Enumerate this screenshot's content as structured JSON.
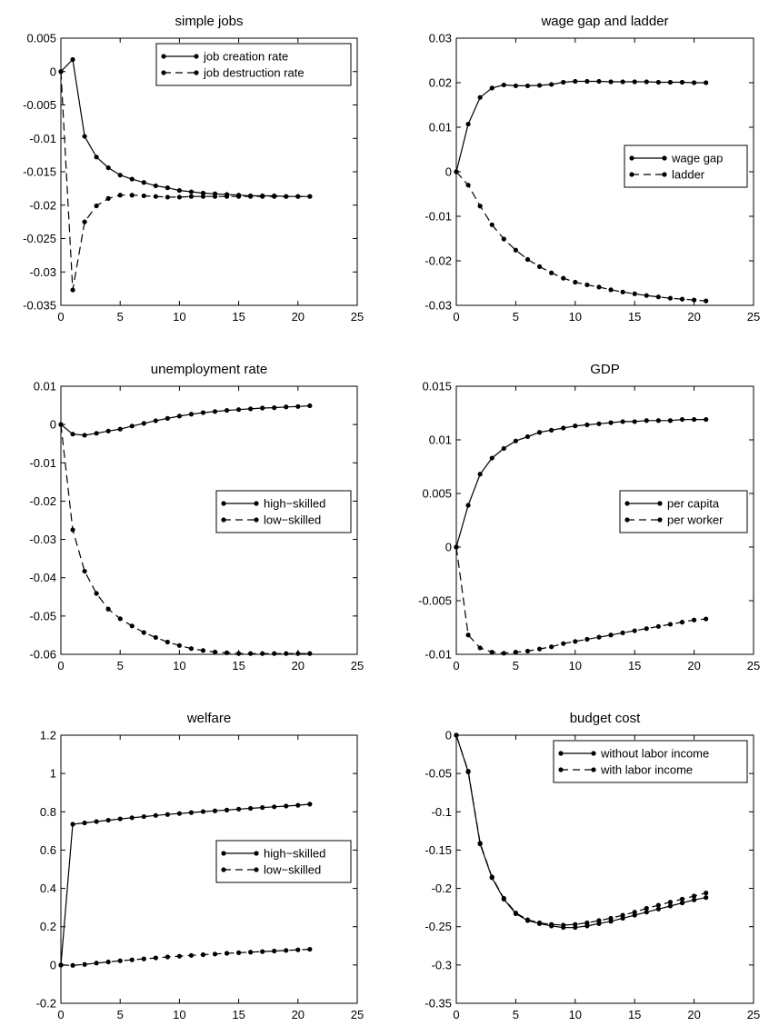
{
  "chart_data": [
    {
      "type": "line",
      "title": "simple jobs",
      "xlim": [
        0,
        25
      ],
      "ylim": [
        -0.035,
        0.005
      ],
      "xticks": [
        0,
        5,
        10,
        15,
        20,
        25
      ],
      "xtick_labels": [
        "0",
        "5",
        "10",
        "15",
        "20",
        "25"
      ],
      "yticks": [
        0.005,
        0,
        -0.005,
        -0.01,
        -0.015,
        -0.02,
        -0.025,
        -0.03,
        -0.035
      ],
      "ytick_labels": [
        "0.005",
        "0",
        "-0.005",
        "-0.01",
        "-0.015",
        "-0.02",
        "-0.025",
        "-0.03",
        "-0.035"
      ],
      "legend_position": "top-right",
      "grid": false,
      "x": [
        0,
        1,
        2,
        3,
        4,
        5,
        6,
        7,
        8,
        9,
        10,
        11,
        12,
        13,
        14,
        15,
        16,
        17,
        18,
        19,
        20,
        21
      ],
      "series": [
        {
          "name": "job creation rate",
          "style": "solid",
          "values": [
            0,
            0.0018,
            -0.0097,
            -0.0128,
            -0.0144,
            -0.0155,
            -0.0161,
            -0.0166,
            -0.0171,
            -0.0174,
            -0.0178,
            -0.018,
            -0.0182,
            -0.0183,
            -0.0184,
            -0.0185,
            -0.0186,
            -0.0186,
            -0.0186,
            -0.0187,
            -0.0187,
            -0.0187
          ]
        },
        {
          "name": "job destruction rate",
          "style": "dashed",
          "values": [
            0,
            -0.0327,
            -0.0225,
            -0.0201,
            -0.019,
            -0.0185,
            -0.0185,
            -0.0186,
            -0.0187,
            -0.0188,
            -0.0188,
            -0.0187,
            -0.0187,
            -0.0187,
            -0.0187,
            -0.0187,
            -0.0187,
            -0.0187,
            -0.0187,
            -0.0187,
            -0.0187,
            -0.0187
          ]
        }
      ]
    },
    {
      "type": "line",
      "title": "wage gap and ladder",
      "xlim": [
        0,
        25
      ],
      "ylim": [
        -0.03,
        0.03
      ],
      "xticks": [
        0,
        5,
        10,
        15,
        20,
        25
      ],
      "xtick_labels": [
        "0",
        "5",
        "10",
        "15",
        "20",
        "25"
      ],
      "yticks": [
        0.03,
        0.02,
        0.01,
        0,
        -0.01,
        -0.02,
        -0.03
      ],
      "ytick_labels": [
        "0.03",
        "0.02",
        "0.01",
        "0",
        "-0.01",
        "-0.02",
        "-0.03"
      ],
      "legend_position": "middle-right",
      "grid": false,
      "x": [
        0,
        1,
        2,
        3,
        4,
        5,
        6,
        7,
        8,
        9,
        10,
        11,
        12,
        13,
        14,
        15,
        16,
        17,
        18,
        19,
        20,
        21
      ],
      "series": [
        {
          "name": "wage gap",
          "style": "solid",
          "values": [
            0,
            0.0107,
            0.0167,
            0.0188,
            0.0195,
            0.0193,
            0.0193,
            0.0194,
            0.0196,
            0.0201,
            0.0203,
            0.0203,
            0.0203,
            0.0202,
            0.0202,
            0.0202,
            0.0202,
            0.0201,
            0.0201,
            0.0201,
            0.02,
            0.02
          ]
        },
        {
          "name": "ladder",
          "style": "dashed",
          "values": [
            0,
            -0.003,
            -0.0077,
            -0.0119,
            -0.0151,
            -0.0176,
            -0.0197,
            -0.0213,
            -0.0227,
            -0.0239,
            -0.0248,
            -0.0254,
            -0.0259,
            -0.0265,
            -0.027,
            -0.0274,
            -0.0278,
            -0.0281,
            -0.0284,
            -0.0286,
            -0.0288,
            -0.029
          ]
        }
      ]
    },
    {
      "type": "line",
      "title": "unemployment rate",
      "xlim": [
        0,
        25
      ],
      "ylim": [
        -0.06,
        0.01
      ],
      "xticks": [
        0,
        5,
        10,
        15,
        20,
        25
      ],
      "xtick_labels": [
        "0",
        "5",
        "10",
        "15",
        "20",
        "25"
      ],
      "yticks": [
        0.01,
        0,
        -0.01,
        -0.02,
        -0.03,
        -0.04,
        -0.05,
        -0.06
      ],
      "ytick_labels": [
        "0.01",
        "0",
        "-0.01",
        "-0.02",
        "-0.03",
        "-0.04",
        "-0.05",
        "-0.06"
      ],
      "legend_position": "middle-right",
      "grid": false,
      "x": [
        0,
        1,
        2,
        3,
        4,
        5,
        6,
        7,
        8,
        9,
        10,
        11,
        12,
        13,
        14,
        15,
        16,
        17,
        18,
        19,
        20,
        21
      ],
      "series": [
        {
          "name": "high−skilled",
          "style": "solid",
          "values": [
            0,
            -0.0025,
            -0.0028,
            -0.0023,
            -0.0017,
            -0.0012,
            -0.0004,
            0.0003,
            0.001,
            0.0016,
            0.0022,
            0.0027,
            0.0031,
            0.0034,
            0.0037,
            0.0039,
            0.0041,
            0.0043,
            0.0044,
            0.0046,
            0.0047,
            0.0049
          ]
        },
        {
          "name": "low−skilled",
          "style": "dashed",
          "values": [
            0,
            -0.0275,
            -0.0383,
            -0.0441,
            -0.0482,
            -0.0507,
            -0.0526,
            -0.0543,
            -0.0556,
            -0.0568,
            -0.0577,
            -0.0585,
            -0.059,
            -0.0594,
            -0.0596,
            -0.0598,
            -0.0598,
            -0.0598,
            -0.0598,
            -0.0598,
            -0.0598,
            -0.0598
          ]
        }
      ]
    },
    {
      "type": "line",
      "title": "GDP",
      "xlim": [
        0,
        25
      ],
      "ylim": [
        -0.01,
        0.015
      ],
      "xticks": [
        0,
        5,
        10,
        15,
        20,
        25
      ],
      "xtick_labels": [
        "0",
        "5",
        "10",
        "15",
        "20",
        "25"
      ],
      "yticks": [
        0.015,
        0.01,
        0.005,
        0,
        -0.005,
        -0.01
      ],
      "ytick_labels": [
        "0.015",
        "0.01",
        "0.005",
        "0",
        "-0.005",
        "-0.01"
      ],
      "legend_position": "middle-right",
      "grid": false,
      "x": [
        0,
        1,
        2,
        3,
        4,
        5,
        6,
        7,
        8,
        9,
        10,
        11,
        12,
        13,
        14,
        15,
        16,
        17,
        18,
        19,
        20,
        21
      ],
      "series": [
        {
          "name": "per capita",
          "style": "solid",
          "values": [
            0,
            0.0039,
            0.0068,
            0.0083,
            0.0092,
            0.0099,
            0.0103,
            0.0107,
            0.0109,
            0.0111,
            0.0113,
            0.0114,
            0.0115,
            0.0116,
            0.0117,
            0.0117,
            0.0118,
            0.0118,
            0.0118,
            0.0119,
            0.0119,
            0.0119
          ]
        },
        {
          "name": "per worker",
          "style": "dashed",
          "values": [
            0,
            -0.0082,
            -0.0094,
            -0.0098,
            -0.0099,
            -0.0098,
            -0.0097,
            -0.0095,
            -0.0093,
            -0.009,
            -0.0088,
            -0.0086,
            -0.0084,
            -0.0082,
            -0.008,
            -0.0078,
            -0.0076,
            -0.0074,
            -0.0072,
            -0.007,
            -0.0068,
            -0.0067
          ]
        }
      ]
    },
    {
      "type": "line",
      "title": "welfare",
      "xlim": [
        0,
        25
      ],
      "ylim": [
        -0.2,
        1.2
      ],
      "xticks": [
        0,
        5,
        10,
        15,
        20,
        25
      ],
      "xtick_labels": [
        "0",
        "5",
        "10",
        "15",
        "20",
        "25"
      ],
      "yticks": [
        1.2,
        1,
        0.8,
        0.6,
        0.4,
        0.2,
        0,
        -0.2
      ],
      "ytick_labels": [
        "1.2",
        "1",
        "0.8",
        "0.6",
        "0.4",
        "0.2",
        "0",
        "-0.2"
      ],
      "legend_position": "middle-right",
      "grid": false,
      "x": [
        0,
        1,
        2,
        3,
        4,
        5,
        6,
        7,
        8,
        9,
        10,
        11,
        12,
        13,
        14,
        15,
        16,
        17,
        18,
        19,
        20,
        21
      ],
      "series": [
        {
          "name": "high−skilled",
          "style": "solid",
          "values": [
            0,
            0.735,
            0.742,
            0.749,
            0.756,
            0.763,
            0.769,
            0.775,
            0.781,
            0.786,
            0.791,
            0.796,
            0.801,
            0.805,
            0.809,
            0.814,
            0.818,
            0.822,
            0.826,
            0.83,
            0.834,
            0.84
          ]
        },
        {
          "name": "low−skilled",
          "style": "dashed",
          "values": [
            0,
            -0.002,
            0.003,
            0.01,
            0.016,
            0.022,
            0.027,
            0.032,
            0.037,
            0.042,
            0.046,
            0.05,
            0.054,
            0.057,
            0.061,
            0.064,
            0.067,
            0.07,
            0.073,
            0.076,
            0.079,
            0.082
          ]
        }
      ]
    },
    {
      "type": "line",
      "title": "budget cost",
      "xlim": [
        0,
        25
      ],
      "ylim": [
        -0.35,
        0
      ],
      "xticks": [
        0,
        5,
        10,
        15,
        20,
        25
      ],
      "xtick_labels": [
        "0",
        "5",
        "10",
        "15",
        "20",
        "25"
      ],
      "yticks": [
        0,
        -0.05,
        -0.1,
        -0.15,
        -0.2,
        -0.25,
        -0.3,
        -0.35
      ],
      "ytick_labels": [
        "0",
        "-0.05",
        "-0.1",
        "-0.15",
        "-0.2",
        "-0.25",
        "-0.3",
        "-0.35"
      ],
      "legend_position": "top-right",
      "grid": false,
      "x": [
        0,
        1,
        2,
        3,
        4,
        5,
        6,
        7,
        8,
        9,
        10,
        11,
        12,
        13,
        14,
        15,
        16,
        17,
        18,
        19,
        20,
        21
      ],
      "series": [
        {
          "name": "without labor income",
          "style": "solid",
          "values": [
            0,
            -0.048,
            -0.142,
            -0.186,
            -0.214,
            -0.233,
            -0.242,
            -0.246,
            -0.249,
            -0.251,
            -0.251,
            -0.249,
            -0.246,
            -0.243,
            -0.239,
            -0.235,
            -0.231,
            -0.227,
            -0.223,
            -0.219,
            -0.215,
            -0.212
          ]
        },
        {
          "name": "with labor income",
          "style": "dashed",
          "values": [
            0,
            -0.047,
            -0.141,
            -0.185,
            -0.213,
            -0.232,
            -0.241,
            -0.245,
            -0.247,
            -0.248,
            -0.247,
            -0.245,
            -0.242,
            -0.239,
            -0.235,
            -0.231,
            -0.226,
            -0.222,
            -0.218,
            -0.214,
            -0.21,
            -0.206
          ]
        }
      ]
    }
  ]
}
